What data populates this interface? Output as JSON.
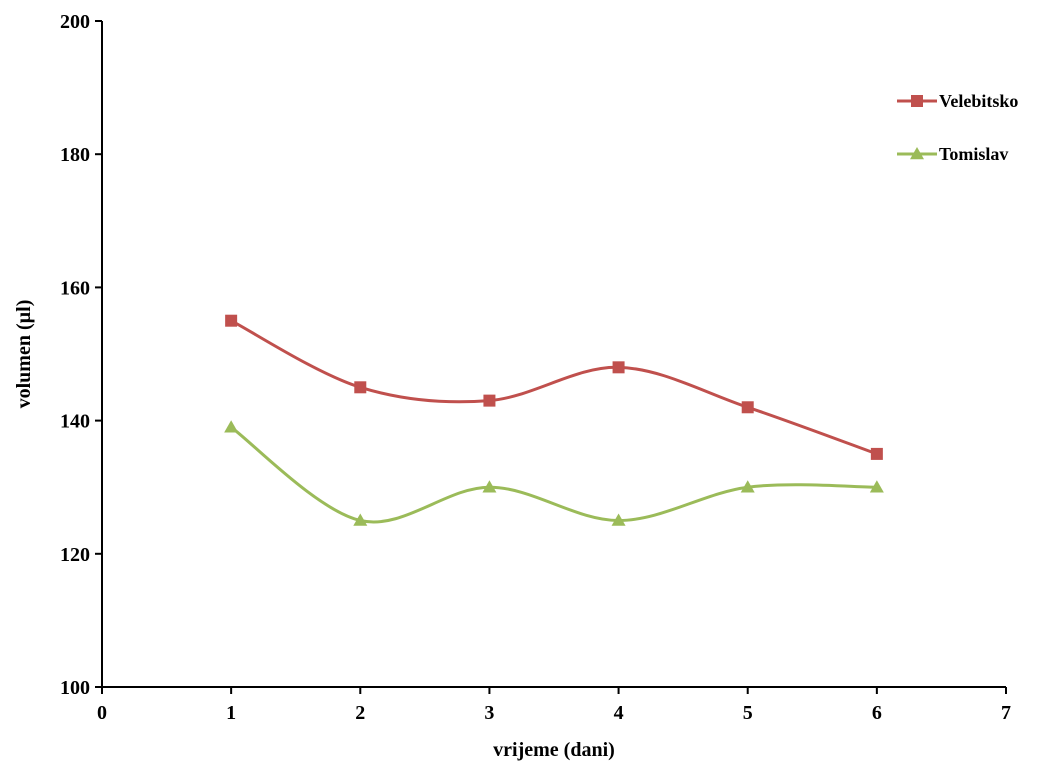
{
  "chart_data": {
    "type": "line",
    "title": "",
    "xlabel": "vrijeme (dani)",
    "ylabel": "volumen (µl)",
    "xlim": [
      0,
      7
    ],
    "ylim": [
      100,
      200
    ],
    "xticks": [
      0,
      1,
      2,
      3,
      4,
      5,
      6,
      7
    ],
    "yticks": [
      100,
      120,
      140,
      160,
      180,
      200
    ],
    "grid": false,
    "legend_position": "top-right",
    "smooth": true,
    "series": [
      {
        "name": "Velebitsko",
        "color": "#c0504d",
        "marker": "square",
        "x": [
          1,
          2,
          3,
          4,
          5,
          6
        ],
        "y": [
          155,
          145,
          143,
          148,
          142,
          135
        ]
      },
      {
        "name": "Tomislav",
        "color": "#9bbb59",
        "marker": "triangle",
        "x": [
          1,
          2,
          3,
          4,
          5,
          6
        ],
        "y": [
          139,
          125,
          130,
          125,
          130,
          130
        ]
      }
    ]
  }
}
